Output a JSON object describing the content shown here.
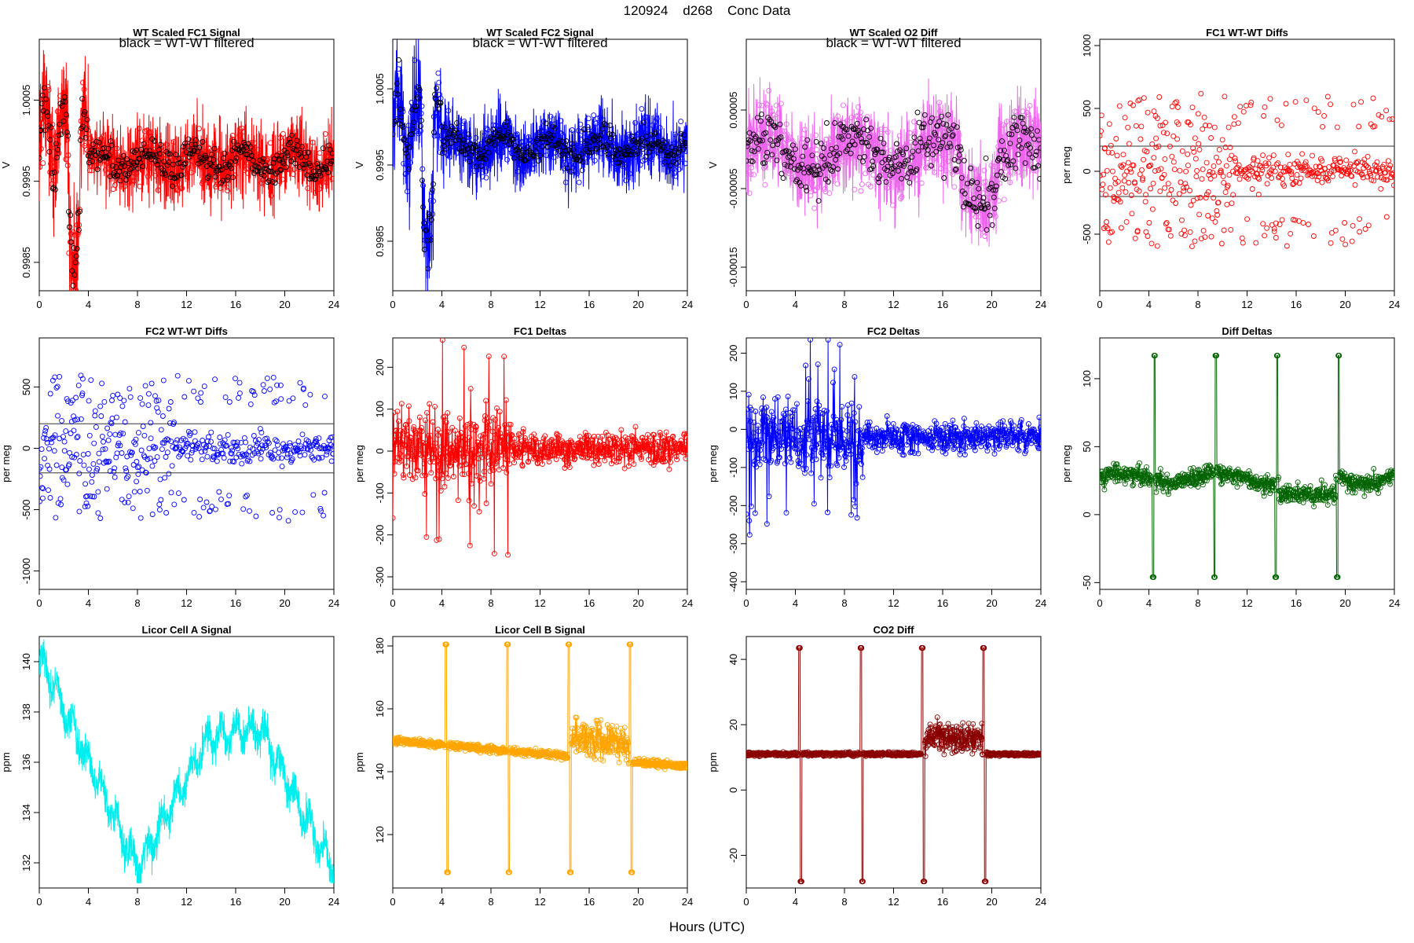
{
  "figure": {
    "title": "120924    d268    Conc Data",
    "x_caption": "Hours (UTC)"
  },
  "chart_data": [
    {
      "id": "fc1-signal",
      "type": "line",
      "title": "WT Scaled FC1 Signal",
      "annotation": "black = WT-WT filtered",
      "ylabel": "V",
      "xlim": [
        0,
        24
      ],
      "ylim": [
        0.99815,
        1.00125
      ],
      "xticks": [
        0,
        4,
        8,
        12,
        16,
        20,
        24
      ],
      "yticks": [
        0.9985,
        0.9995,
        1.0005
      ],
      "ytick_labels": [
        "0.9985",
        "0.9995",
        "1.0005"
      ],
      "color": "#ff0000",
      "overlay_color": "#000000",
      "points": "circles",
      "grid": false,
      "seed": 11,
      "gen": "fc"
    },
    {
      "id": "fc2-signal",
      "type": "line",
      "title": "WT Scaled FC2 Signal",
      "annotation": "black = WT-WT filtered",
      "ylabel": "V",
      "xlim": [
        0,
        24
      ],
      "ylim": [
        0.99785,
        1.00115
      ],
      "xticks": [
        0,
        4,
        8,
        12,
        16,
        20,
        24
      ],
      "yticks": [
        0.9985,
        0.9995,
        1.0005
      ],
      "ytick_labels": [
        "0.9985",
        "0.9995",
        "1.0005"
      ],
      "color": "#0000ff",
      "overlay_color": "#000000",
      "points": "circles",
      "grid": false,
      "seed": 23,
      "gen": "fc"
    },
    {
      "id": "o2-diff",
      "type": "line",
      "title": "WT Scaled O2 Diff",
      "annotation": "black = WT-WT filtered",
      "ylabel": "V",
      "xlim": [
        0,
        24
      ],
      "ylim": [
        -0.00018,
        0.00014
      ],
      "xticks": [
        0,
        4,
        8,
        12,
        16,
        20,
        24
      ],
      "yticks": [
        -0.00015,
        -5e-05,
        5e-05
      ],
      "ytick_labels": [
        "-0.00015",
        "-0.00005",
        "0.00005"
      ],
      "color": "#ee66ee",
      "overlay_color": "#000000",
      "points": "circles",
      "grid": false,
      "seed": 37,
      "gen": "o2"
    },
    {
      "id": "fc1-wtwt-diffs",
      "type": "scatter",
      "title": "FC1 WT-WT Diffs",
      "ylabel": "per meg",
      "xlim": [
        0,
        24
      ],
      "ylim": [
        -950,
        1050
      ],
      "xticks": [
        0,
        4,
        8,
        12,
        16,
        20,
        24
      ],
      "yticks": [
        -500,
        0,
        500,
        1000
      ],
      "ytick_labels": [
        "-500",
        "0",
        "500",
        "1000"
      ],
      "hlines": [
        200,
        -200
      ],
      "color": "#ff0000",
      "points": "circles",
      "grid": false,
      "seed": 41,
      "gen": "wt"
    },
    {
      "id": "fc2-wtwt-diffs",
      "type": "scatter",
      "title": "FC2 WT-WT Diffs",
      "ylabel": "per meg",
      "xlim": [
        0,
        24
      ],
      "ylim": [
        -1150,
        900
      ],
      "xticks": [
        0,
        4,
        8,
        12,
        16,
        20,
        24
      ],
      "yticks": [
        -1000,
        -500,
        0,
        500
      ],
      "ytick_labels": [
        "-1000",
        "-500",
        "0",
        "500"
      ],
      "hlines": [
        200,
        -200
      ],
      "color": "#0000ff",
      "points": "circles",
      "grid": false,
      "seed": 53,
      "gen": "wt"
    },
    {
      "id": "fc1-deltas",
      "type": "line",
      "title": "FC1 Deltas",
      "ylabel": "per meg",
      "xlim": [
        0,
        24
      ],
      "ylim": [
        -330,
        270
      ],
      "xticks": [
        0,
        4,
        8,
        12,
        16,
        20,
        24
      ],
      "yticks": [
        -300,
        -200,
        -100,
        0,
        100,
        200
      ],
      "ytick_labels": [
        "-300",
        "-200",
        "-100",
        "0",
        "100",
        "200"
      ],
      "color": "#ff0000",
      "points": "circles",
      "grid": false,
      "seed": 61,
      "gen": "delta"
    },
    {
      "id": "fc2-deltas",
      "type": "line",
      "title": "FC2 Deltas",
      "ylabel": "per meg",
      "xlim": [
        0,
        24
      ],
      "ylim": [
        -420,
        240
      ],
      "xticks": [
        0,
        4,
        8,
        12,
        16,
        20,
        24
      ],
      "yticks": [
        -400,
        -300,
        -200,
        -100,
        0,
        100,
        200
      ],
      "ytick_labels": [
        "-400",
        "-300",
        "-200",
        "-100",
        "0",
        "100",
        "200"
      ],
      "color": "#0000ff",
      "points": "circles",
      "grid": false,
      "seed": 73,
      "gen": "delta"
    },
    {
      "id": "diff-deltas",
      "type": "line",
      "title": "Diff Deltas",
      "ylabel": "per meg",
      "xlim": [
        0,
        24
      ],
      "ylim": [
        -55,
        130
      ],
      "xticks": [
        0,
        4,
        8,
        12,
        16,
        20,
        24
      ],
      "yticks": [
        -50,
        0,
        50,
        100
      ],
      "ytick_labels": [
        "-50",
        "0",
        "50",
        "100"
      ],
      "color": "#006400",
      "points": "circles",
      "grid": false,
      "seed": 83,
      "gen": "diffdelta",
      "spikes": [
        4.4,
        9.4,
        14.4,
        19.4
      ],
      "spike_high": 117,
      "spike_low": -46
    },
    {
      "id": "licor-a",
      "type": "line",
      "title": "Licor Cell A Signal",
      "ylabel": "ppm",
      "xlim": [
        0,
        24
      ],
      "ylim": [
        131,
        141
      ],
      "xticks": [
        0,
        4,
        8,
        12,
        16,
        20,
        24
      ],
      "yticks": [
        132,
        134,
        136,
        138,
        140
      ],
      "ytick_labels": [
        "132",
        "134",
        "136",
        "138",
        "140"
      ],
      "color": "#00eeee",
      "points": "none",
      "grid": false,
      "seed": 97,
      "gen": "licorA"
    },
    {
      "id": "licor-b",
      "type": "line",
      "title": "Licor Cell B Signal",
      "ylabel": "ppm",
      "xlim": [
        0,
        24
      ],
      "ylim": [
        103,
        183
      ],
      "xticks": [
        0,
        4,
        8,
        12,
        16,
        20,
        24
      ],
      "yticks": [
        120,
        140,
        160,
        180
      ],
      "ytick_labels": [
        "120",
        "140",
        "160",
        "180"
      ],
      "color": "#ffa500",
      "points": "circles",
      "grid": false,
      "seed": 101,
      "gen": "licorB",
      "spikes": [
        4.4,
        9.4,
        14.4,
        19.4
      ],
      "spike_high": 180.5,
      "spike_low": 108
    },
    {
      "id": "co2-diff",
      "type": "line",
      "title": "CO2 Diff",
      "ylabel": "ppm",
      "xlim": [
        0,
        24
      ],
      "ylim": [
        -30,
        47
      ],
      "xticks": [
        0,
        4,
        8,
        12,
        16,
        20,
        24
      ],
      "yticks": [
        -20,
        0,
        20,
        40
      ],
      "ytick_labels": [
        "-20",
        "0",
        "20",
        "40"
      ],
      "color": "#8b0000",
      "points": "circles",
      "grid": false,
      "seed": 113,
      "gen": "co2",
      "spikes": [
        4.4,
        9.4,
        14.4,
        19.4
      ],
      "spike_high": 43.5,
      "spike_low": -28
    }
  ]
}
